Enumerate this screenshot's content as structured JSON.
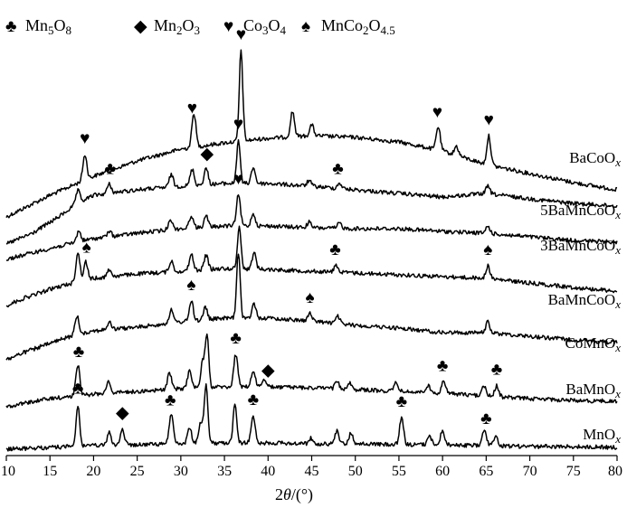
{
  "chart_data": {
    "type": "line",
    "xlabel": "2θ/(°)",
    "xlim": [
      10,
      80
    ],
    "x_ticks": [
      10,
      15,
      20,
      25,
      30,
      35,
      40,
      45,
      50,
      55,
      60,
      65,
      70,
      75,
      80
    ],
    "legend": [
      {
        "symbol": "club",
        "glyph": "♣",
        "phase": "Mn5O8"
      },
      {
        "symbol": "diamond",
        "glyph": "◆",
        "phase": "Mn2O3"
      },
      {
        "symbol": "heart",
        "glyph": "♥",
        "phase": "Co3O4"
      },
      {
        "symbol": "spade",
        "glyph": "♠",
        "phase": "MnCo2O4.5"
      }
    ],
    "series": [
      {
        "name": "BaCoOx",
        "baseline": [
          [
            10,
            240
          ],
          [
            15,
            216
          ],
          [
            20,
            195
          ],
          [
            25,
            178
          ],
          [
            30,
            165
          ],
          [
            35,
            158
          ],
          [
            40,
            153
          ],
          [
            45,
            150
          ],
          [
            50,
            152
          ],
          [
            55,
            157
          ],
          [
            60,
            167
          ],
          [
            65,
            182
          ],
          [
            70,
            192
          ],
          [
            75,
            202
          ],
          [
            80,
            210
          ]
        ],
        "peaks": [
          [
            19.0,
            28
          ],
          [
            31.5,
            38
          ],
          [
            36.9,
            100
          ],
          [
            42.8,
            28
          ],
          [
            45.0,
            12
          ],
          [
            59.5,
            26
          ],
          [
            61.6,
            10
          ],
          [
            65.3,
            32
          ]
        ],
        "markers": [
          {
            "x": 19.0,
            "symbol": "heart"
          },
          {
            "x": 31.3,
            "symbol": "heart"
          },
          {
            "x": 36.9,
            "symbol": "heart"
          },
          {
            "x": 59.4,
            "symbol": "heart"
          },
          {
            "x": 65.3,
            "symbol": "heart"
          }
        ]
      },
      {
        "name": "5BaMnCoOx",
        "baseline": [
          [
            10,
            270
          ],
          [
            13,
            258
          ],
          [
            16,
            240
          ],
          [
            18,
            226
          ],
          [
            20,
            216
          ],
          [
            25,
            210
          ],
          [
            30,
            206
          ],
          [
            35,
            203
          ],
          [
            40,
            203
          ],
          [
            45,
            206
          ],
          [
            50,
            210
          ],
          [
            55,
            214
          ],
          [
            60,
            218
          ],
          [
            65,
            214
          ],
          [
            70,
            220
          ],
          [
            75,
            225
          ],
          [
            80,
            228
          ]
        ],
        "peaks": [
          [
            18.2,
            14
          ],
          [
            21.8,
            10
          ],
          [
            28.9,
            14
          ],
          [
            31.3,
            18
          ],
          [
            32.9,
            18
          ],
          [
            36.6,
            48
          ],
          [
            38.3,
            18
          ],
          [
            44.7,
            6
          ],
          [
            48.2,
            6
          ],
          [
            65.2,
            8
          ]
        ],
        "markers": [
          {
            "x": 21.9,
            "symbol": "club"
          },
          {
            "x": 33.0,
            "symbol": "diamond"
          },
          {
            "x": 36.6,
            "symbol": "heart"
          },
          {
            "x": 48.0,
            "symbol": "club"
          }
        ]
      },
      {
        "name": "3BaMnCoOx",
        "baseline": [
          [
            10,
            287
          ],
          [
            12,
            282
          ],
          [
            15,
            275
          ],
          [
            18,
            268
          ],
          [
            20,
            264
          ],
          [
            25,
            258
          ],
          [
            30,
            253
          ],
          [
            35,
            250
          ],
          [
            40,
            250
          ],
          [
            45,
            252
          ],
          [
            50,
            253
          ],
          [
            55,
            253
          ],
          [
            60,
            256
          ],
          [
            65,
            258
          ],
          [
            70,
            262
          ],
          [
            75,
            266
          ],
          [
            80,
            268
          ]
        ],
        "peaks": [
          [
            18.3,
            12
          ],
          [
            21.8,
            6
          ],
          [
            28.8,
            12
          ],
          [
            31.2,
            14
          ],
          [
            32.9,
            12
          ],
          [
            36.6,
            34
          ],
          [
            38.3,
            14
          ],
          [
            44.7,
            6
          ],
          [
            48.2,
            6
          ],
          [
            65.2,
            8
          ]
        ],
        "markers": [
          {
            "x": 36.6,
            "symbol": "heart"
          }
        ]
      },
      {
        "name": "BaMnCoOx",
        "baseline": [
          [
            10,
            338
          ],
          [
            12,
            330
          ],
          [
            15,
            320
          ],
          [
            18,
            312
          ],
          [
            20,
            308
          ],
          [
            25,
            303
          ],
          [
            30,
            300
          ],
          [
            35,
            297
          ],
          [
            40,
            298
          ],
          [
            45,
            300
          ],
          [
            50,
            302
          ],
          [
            55,
            304
          ],
          [
            60,
            306
          ],
          [
            65,
            308
          ],
          [
            70,
            313
          ],
          [
            75,
            318
          ],
          [
            80,
            322
          ]
        ],
        "peaks": [
          [
            18.2,
            32
          ],
          [
            19.1,
            20
          ],
          [
            21.8,
            8
          ],
          [
            28.9,
            12
          ],
          [
            31.2,
            18
          ],
          [
            32.9,
            16
          ],
          [
            36.7,
            48
          ],
          [
            38.4,
            18
          ],
          [
            47.8,
            8
          ],
          [
            65.2,
            14
          ]
        ],
        "markers": [
          {
            "x": 19.2,
            "symbol": "spade"
          },
          {
            "x": 47.7,
            "symbol": "club"
          },
          {
            "x": 65.2,
            "symbol": "spade"
          }
        ]
      },
      {
        "name": "CoMnOx",
        "baseline": [
          [
            10,
            398
          ],
          [
            12,
            390
          ],
          [
            15,
            380
          ],
          [
            18,
            370
          ],
          [
            20,
            366
          ],
          [
            25,
            362
          ],
          [
            30,
            356
          ],
          [
            35,
            352
          ],
          [
            40,
            352
          ],
          [
            45,
            355
          ],
          [
            50,
            360
          ],
          [
            55,
            363
          ],
          [
            60,
            368
          ],
          [
            65,
            368
          ],
          [
            70,
            372
          ],
          [
            75,
            376
          ],
          [
            80,
            379
          ]
        ],
        "peaks": [
          [
            18.1,
            20
          ],
          [
            21.8,
            8
          ],
          [
            28.9,
            14
          ],
          [
            31.2,
            22
          ],
          [
            32.8,
            14
          ],
          [
            36.6,
            72
          ],
          [
            38.4,
            16
          ],
          [
            44.8,
            8
          ],
          [
            48.0,
            8
          ],
          [
            65.2,
            12
          ]
        ],
        "markers": [
          {
            "x": 31.2,
            "symbol": "spade"
          },
          {
            "x": 44.8,
            "symbol": "spade"
          }
        ]
      },
      {
        "name": "BaMnOx",
        "baseline": [
          [
            10,
            450
          ],
          [
            12,
            446
          ],
          [
            15,
            441
          ],
          [
            18,
            438
          ],
          [
            20,
            436
          ],
          [
            25,
            433
          ],
          [
            30,
            430
          ],
          [
            35,
            428
          ],
          [
            40,
            428
          ],
          [
            45,
            429
          ],
          [
            50,
            431
          ],
          [
            55,
            433
          ],
          [
            60,
            435
          ],
          [
            65,
            438
          ],
          [
            70,
            441
          ],
          [
            75,
            443
          ],
          [
            80,
            444
          ]
        ],
        "peaks": [
          [
            18.2,
            34
          ],
          [
            21.7,
            14
          ],
          [
            28.7,
            18
          ],
          [
            31.0,
            20
          ],
          [
            32.5,
            28
          ],
          [
            33.0,
            58
          ],
          [
            36.3,
            36
          ],
          [
            38.3,
            18
          ],
          [
            39.5,
            8
          ],
          [
            47.9,
            8
          ],
          [
            49.3,
            8
          ],
          [
            54.7,
            10
          ],
          [
            58.3,
            8
          ],
          [
            60.1,
            14
          ],
          [
            64.7,
            12
          ],
          [
            66.2,
            12
          ]
        ],
        "markers": [
          {
            "x": 18.3,
            "symbol": "club"
          },
          {
            "x": 36.3,
            "symbol": "club"
          },
          {
            "x": 40.0,
            "symbol": "diamond"
          },
          {
            "x": 60.0,
            "symbol": "club"
          },
          {
            "x": 66.2,
            "symbol": "club"
          }
        ]
      },
      {
        "name": "MnOx",
        "baseline": [
          [
            10,
            497
          ],
          [
            15,
            495
          ],
          [
            20,
            493
          ],
          [
            25,
            492
          ],
          [
            30,
            491
          ],
          [
            35,
            490
          ],
          [
            40,
            490
          ],
          [
            45,
            491
          ],
          [
            50,
            491
          ],
          [
            55,
            492
          ],
          [
            60,
            492
          ],
          [
            65,
            493
          ],
          [
            70,
            494
          ],
          [
            75,
            494
          ],
          [
            80,
            495
          ]
        ],
        "peaks": [
          [
            18.2,
            46
          ],
          [
            21.8,
            14
          ],
          [
            23.3,
            18
          ],
          [
            28.9,
            34
          ],
          [
            31.0,
            18
          ],
          [
            32.3,
            24
          ],
          [
            32.9,
            66
          ],
          [
            36.2,
            44
          ],
          [
            38.3,
            30
          ],
          [
            44.9,
            6
          ],
          [
            47.9,
            14
          ],
          [
            49.5,
            12
          ],
          [
            55.3,
            30
          ],
          [
            58.5,
            10
          ],
          [
            60.0,
            16
          ],
          [
            64.8,
            18
          ],
          [
            66.1,
            12
          ]
        ],
        "markers": [
          {
            "x": 18.2,
            "symbol": "club"
          },
          {
            "x": 23.3,
            "symbol": "diamond"
          },
          {
            "x": 28.8,
            "symbol": "club"
          },
          {
            "x": 38.3,
            "symbol": "club"
          },
          {
            "x": 55.3,
            "symbol": "club"
          },
          {
            "x": 65.0,
            "symbol": "club"
          }
        ]
      }
    ]
  }
}
